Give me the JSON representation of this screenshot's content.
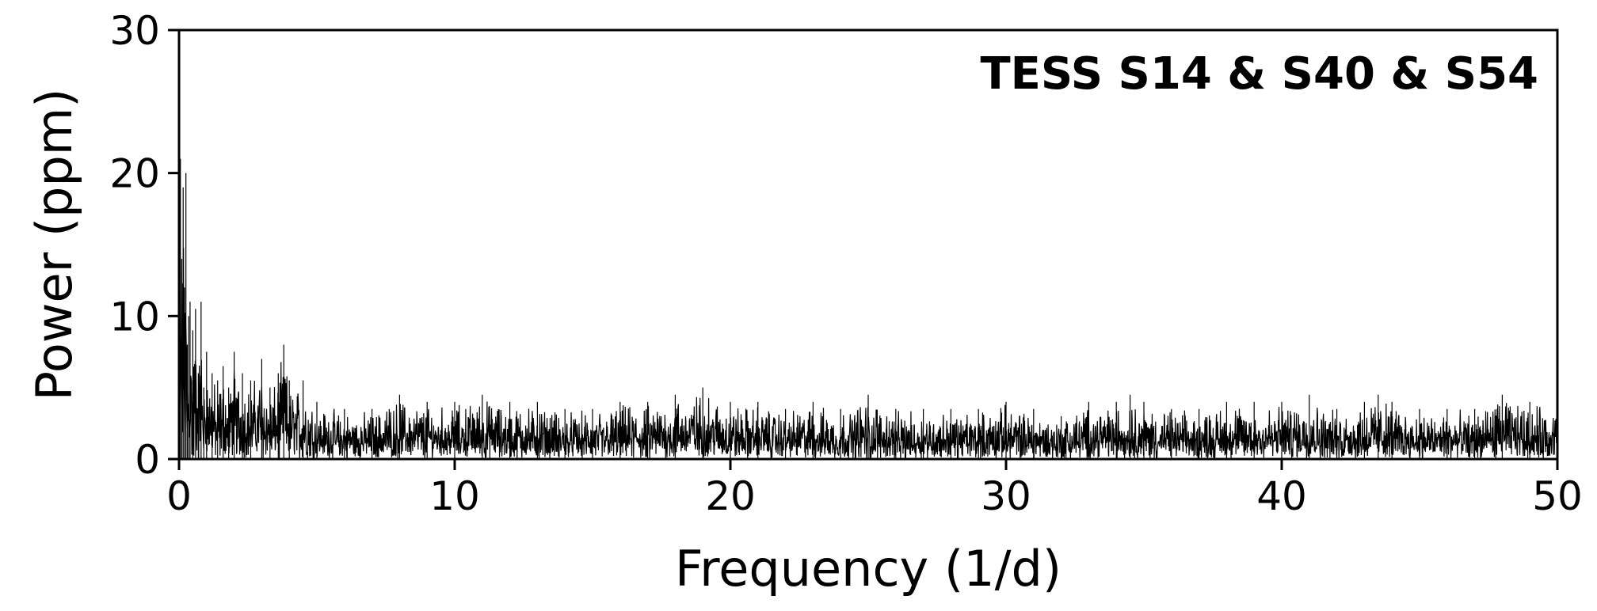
{
  "chart_data": {
    "type": "line",
    "title": "",
    "annotation": "TESS S14 & S40 & S54",
    "xlabel": "Frequency (1/d)",
    "ylabel": "Power (ppm)",
    "xlim": [
      0,
      50
    ],
    "ylim": [
      0,
      30
    ],
    "xticks": [
      0,
      10,
      20,
      30,
      40,
      50
    ],
    "yticks": [
      0,
      10,
      20,
      30
    ],
    "xtick_labels": [
      "0",
      "10",
      "20",
      "30",
      "40",
      "50"
    ],
    "ytick_labels": [
      "0",
      "10",
      "20",
      "30"
    ],
    "grid": false,
    "legend": "none",
    "line_color": "#000000",
    "series": [
      {
        "x": [
          0.0,
          0.05,
          0.1,
          0.15,
          0.2,
          0.25,
          0.3,
          0.35,
          0.4,
          0.5,
          0.6,
          0.7,
          0.8,
          0.9,
          1.0,
          1.2,
          1.4,
          1.6,
          1.8,
          2.0,
          2.3,
          2.6,
          3.0,
          3.3,
          3.6,
          3.8,
          4.0,
          4.5,
          5.0,
          6.0,
          7.0,
          8.0,
          9.0,
          10.0,
          11.0,
          12.0,
          13.0,
          14.0,
          15.0,
          16.0,
          17.0,
          18.0,
          19.0,
          20.0,
          21.0,
          22.0,
          23.0,
          24.0,
          25.0,
          26.0,
          27.0,
          28.0,
          29.0,
          30.0,
          31.0,
          32.0,
          33.0,
          34.0,
          34.5,
          35.0,
          36.0,
          37.0,
          38.0,
          39.0,
          40.0,
          41.0,
          42.0,
          43.0,
          43.5,
          44.0,
          45.0,
          46.0,
          47.0,
          48.0,
          49.0,
          50.0
        ],
        "y": [
          17.0,
          21.0,
          14.0,
          19.0,
          12.0,
          20.0,
          8.0,
          10.0,
          11.0,
          9.0,
          10.5,
          6.0,
          11.0,
          5.0,
          7.5,
          6.0,
          5.5,
          6.5,
          5.0,
          7.5,
          6.0,
          5.5,
          7.0,
          5.0,
          6.0,
          8.0,
          5.5,
          5.5,
          4.0,
          3.5,
          3.5,
          4.5,
          4.0,
          4.0,
          4.5,
          4.0,
          4.0,
          3.5,
          3.5,
          4.0,
          4.0,
          4.5,
          5.0,
          4.0,
          4.0,
          3.5,
          4.0,
          3.5,
          4.5,
          3.5,
          3.5,
          3.5,
          3.5,
          4.0,
          3.5,
          3.0,
          4.0,
          4.0,
          4.5,
          4.0,
          3.5,
          3.5,
          4.0,
          4.0,
          4.0,
          4.5,
          3.5,
          4.0,
          4.5,
          4.0,
          3.5,
          3.5,
          3.5,
          4.5,
          4.0,
          4.0
        ]
      }
    ]
  }
}
